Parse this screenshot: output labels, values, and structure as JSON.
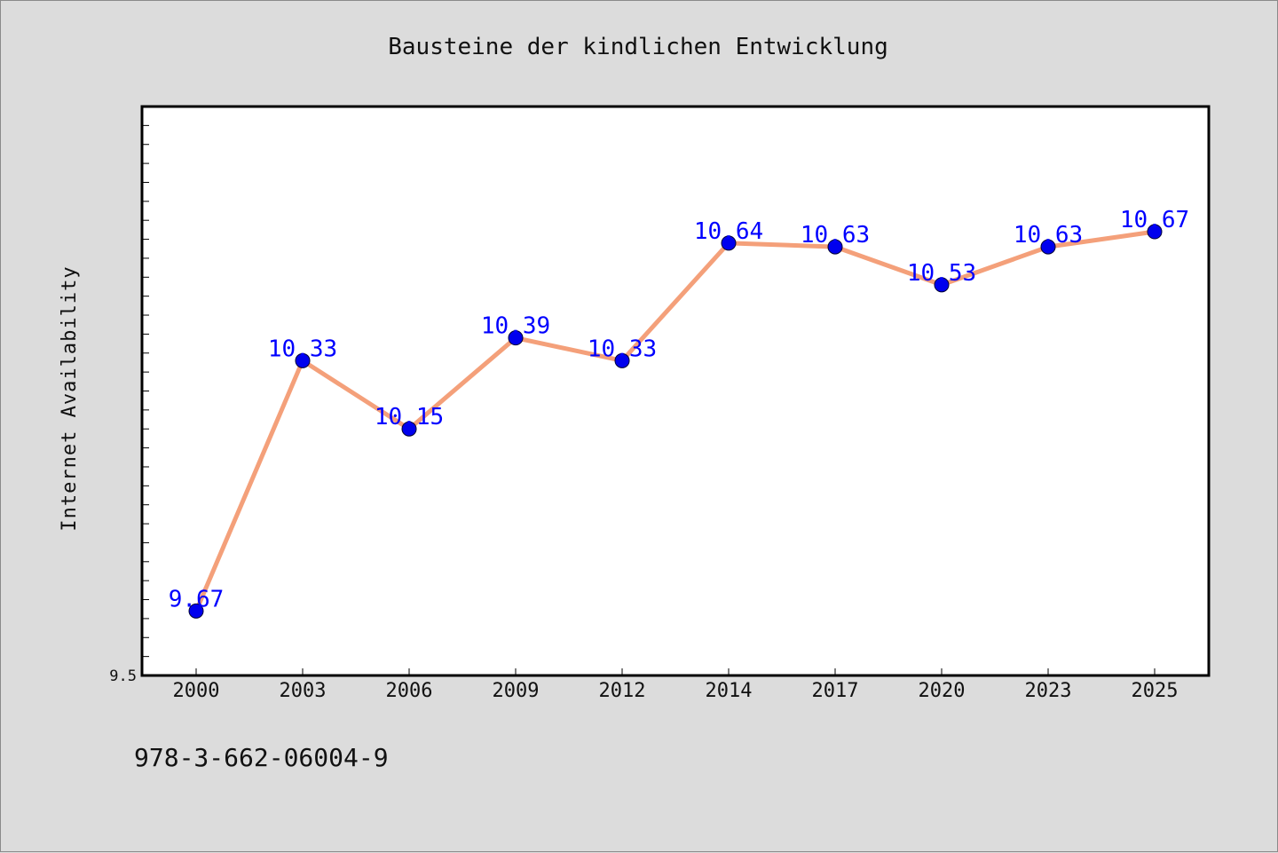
{
  "chart_data": {
    "type": "line",
    "title": "Bausteine der kindlichen Entwicklung",
    "xlabel": "",
    "ylabel": "Internet Availability",
    "categories": [
      "2000",
      "2003",
      "2006",
      "2009",
      "2012",
      "2014",
      "2017",
      "2020",
      "2023",
      "2025"
    ],
    "series": [
      {
        "values": [
          9.67,
          10.33,
          10.15,
          10.39,
          10.33,
          10.64,
          10.63,
          10.53,
          10.63,
          10.67
        ],
        "labels": [
          "9.67",
          "10.33",
          "10.15",
          "10.39",
          "10.33",
          "10.64",
          "10.63",
          "10.53",
          "10.63",
          "10.67"
        ],
        "line_color": "#f4a07a",
        "marker_color": "#0000ee"
      }
    ],
    "ylim": [
      9.5,
      11.0
    ],
    "yticks_labeled": [
      "9.5"
    ],
    "grid": false,
    "legend": "none"
  },
  "footer": {
    "isbn": "978-3-662-06004-9"
  },
  "colors": {
    "background": "#dcdcdc",
    "plot_background": "#ffffff",
    "data_label": "#0000ff"
  }
}
